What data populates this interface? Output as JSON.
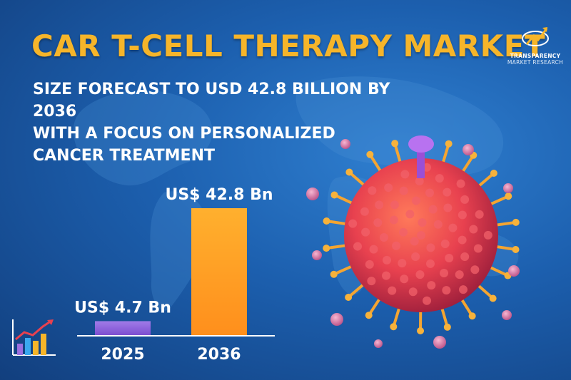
{
  "title": "CAR T-CELL THERAPY MARKET",
  "subtitle_lines": [
    "SIZE FORECAST TO USD 42.8 BILLION BY 2036",
    "WITH A FOCUS ON PERSONALIZED",
    "CANCER TREATMENT"
  ],
  "logo": {
    "line1": "TRANSPARENCY",
    "line2": "MARKET RESEARCH"
  },
  "colors": {
    "title": "#f6b52a",
    "bar_2025": "#8f62dc",
    "bar_2036": "#ffa024",
    "background": "#1c5fae"
  },
  "chart_data": {
    "type": "bar",
    "categories": [
      "2025",
      "2036"
    ],
    "values": [
      4.7,
      42.8
    ],
    "data_labels": [
      "US$ 4.7 Bn",
      "US$ 42.8 Bn"
    ],
    "unit": "US$ Bn",
    "xlabel": "",
    "ylabel": "",
    "ylim": [
      0,
      42.8
    ],
    "grid": false,
    "legend": "none"
  }
}
